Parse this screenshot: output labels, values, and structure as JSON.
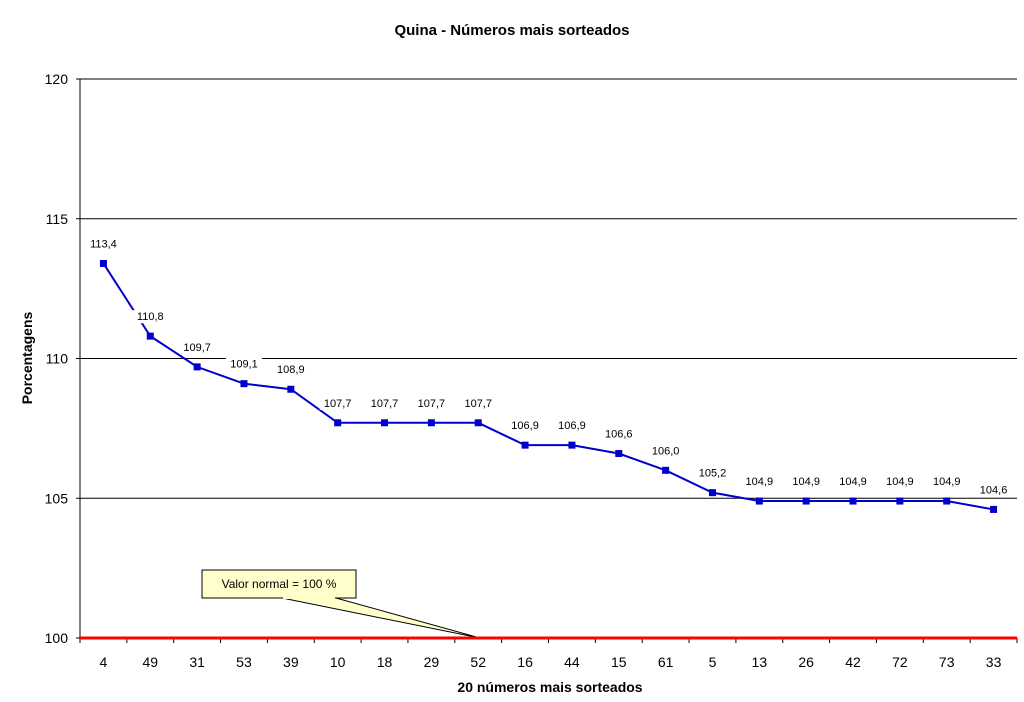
{
  "chart_data": {
    "type": "line",
    "title": "Quina - Números mais sorteados",
    "xlabel": "20 números mais sorteados",
    "ylabel": "Porcentagens",
    "ylim": [
      100,
      120
    ],
    "yticks": [
      100,
      105,
      110,
      115,
      120
    ],
    "grid": true,
    "categories": [
      "4",
      "49",
      "31",
      "53",
      "39",
      "10",
      "18",
      "29",
      "52",
      "16",
      "44",
      "15",
      "61",
      "5",
      "13",
      "26",
      "42",
      "72",
      "73",
      "33"
    ],
    "values": [
      113.4,
      110.8,
      109.7,
      109.1,
      108.9,
      107.7,
      107.7,
      107.7,
      107.7,
      106.9,
      106.9,
      106.6,
      106.0,
      105.2,
      104.9,
      104.9,
      104.9,
      104.9,
      104.9,
      104.6
    ],
    "data_labels": [
      "113,4",
      "110,8",
      "109,7",
      "109,1",
      "108,9",
      "107,7",
      "107,7",
      "107,7",
      "107,7",
      "106,9",
      "106,9",
      "106,6",
      "106,0",
      "105,2",
      "104,9",
      "104,9",
      "104,9",
      "104,9",
      "104,9",
      "104,6"
    ],
    "reference_line": {
      "value": 100,
      "color": "#ff0000"
    },
    "annotation": {
      "text": "Valor normal = 100 %",
      "points_to": 100
    },
    "series_color": "#0000cc"
  }
}
